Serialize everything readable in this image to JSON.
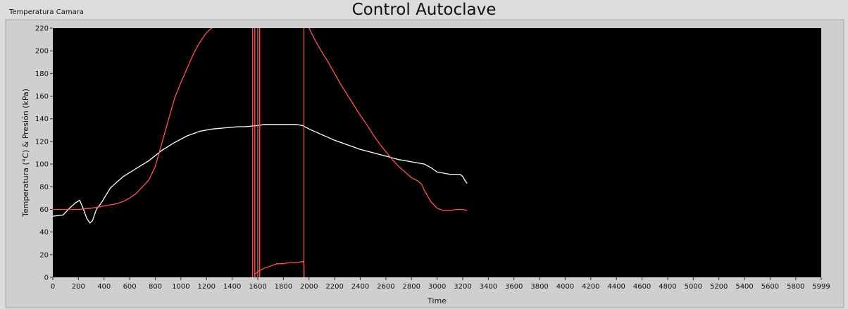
{
  "window": {
    "title": "Control Autoclave",
    "panel_label": "Temperatura Camara"
  },
  "chart_data": {
    "type": "line",
    "title": "",
    "xlabel": "Time",
    "ylabel": "Temperatura (°C) & Presión (kPa)",
    "xlim": [
      0,
      5999
    ],
    "ylim": [
      0,
      220
    ],
    "xticks": [
      0,
      200,
      400,
      600,
      800,
      1000,
      1200,
      1400,
      1600,
      1800,
      2000,
      2200,
      2400,
      2600,
      2800,
      3000,
      3200,
      3400,
      3600,
      3800,
      4000,
      4200,
      4400,
      4600,
      4800,
      5000,
      5200,
      5400,
      5600,
      5800,
      5999
    ],
    "yticks": [
      0,
      20,
      40,
      60,
      80,
      100,
      120,
      140,
      160,
      180,
      200,
      220
    ],
    "grid": false,
    "background": "#000000",
    "series": [
      {
        "color": "#ffffff",
        "x": [
          0,
          80,
          130,
          180,
          210,
          240,
          265,
          290,
          310,
          340,
          380,
          450,
          550,
          650,
          750,
          850,
          950,
          1050,
          1150,
          1250,
          1350,
          1450,
          1500,
          1550,
          1600,
          1650,
          1700,
          1800,
          1900,
          1950,
          2000,
          2100,
          2200,
          2300,
          2400,
          2500,
          2600,
          2700,
          2800,
          2900,
          2950,
          3000,
          3100,
          3150,
          3180,
          3200,
          3220,
          3235
        ],
        "y": [
          54,
          55,
          61,
          66,
          68,
          60,
          52,
          48,
          50,
          60,
          66,
          79,
          89,
          96,
          103,
          112,
          119,
          125,
          129,
          131,
          132,
          133,
          133,
          133.5,
          134,
          135,
          135,
          135,
          135,
          134,
          131,
          126,
          121,
          117,
          113,
          110,
          107,
          104,
          102,
          100,
          97,
          93,
          91,
          91,
          91,
          89,
          85,
          83
        ]
      },
      {
        "color": "#ff5555",
        "x": [
          0,
          100,
          200,
          300,
          350,
          400,
          450,
          500,
          550,
          600,
          650,
          700,
          750,
          800,
          850,
          900,
          950,
          1000,
          1050,
          1100,
          1150,
          1200,
          1250,
          1280
        ],
        "y": [
          60,
          60,
          60,
          61,
          62,
          63,
          64,
          65,
          67,
          70,
          74,
          80,
          86,
          98,
          118,
          138,
          158,
          172,
          185,
          198,
          208,
          216,
          221,
          222
        ]
      },
      {
        "color": "#ff5555",
        "x": [
          1580,
          1600,
          1650,
          1700,
          1750,
          1800,
          1850,
          1900,
          1955,
          1960,
          1962
        ],
        "y": [
          3,
          5,
          8,
          10,
          12,
          12,
          13,
          13,
          14,
          12,
          0
        ]
      },
      {
        "color": "#ff5555",
        "x": [
          1960,
          1990,
          2000,
          2050,
          2100,
          2150,
          2200,
          2250,
          2300,
          2350,
          2400,
          2450,
          2500,
          2550,
          2600,
          2650,
          2700,
          2750,
          2800,
          2850,
          2880,
          2900,
          2950,
          3000,
          3050,
          3100,
          3150,
          3200,
          3235
        ],
        "y": [
          222,
          221,
          220,
          209,
          199,
          190,
          180,
          170,
          161,
          152,
          143,
          135,
          126,
          118,
          111,
          104,
          98,
          93,
          88,
          85,
          82,
          77,
          67,
          61,
          59,
          59,
          60,
          60,
          59
        ]
      },
      {
        "color": "#ff5555",
        "x": [
          1560,
          1560
        ],
        "y": [
          220,
          0
        ]
      },
      {
        "color": "#ff5555",
        "x": [
          1577,
          1577
        ],
        "y": [
          220,
          0
        ]
      },
      {
        "color": "#ff5555",
        "x": [
          1600,
          1600
        ],
        "y": [
          220,
          0
        ]
      },
      {
        "color": "#ff5555",
        "x": [
          1615,
          1615
        ],
        "y": [
          220,
          0
        ]
      },
      {
        "color": "#ff5555",
        "x": [
          1960,
          1960
        ],
        "y": [
          220,
          0
        ]
      }
    ]
  }
}
